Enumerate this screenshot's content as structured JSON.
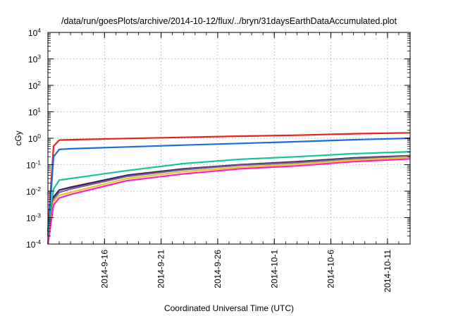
{
  "chart_data": {
    "type": "line",
    "title": "/data/run/goesPlots/archive/2014-10-12/flux/../bryn/31daysEarthDataAccumulated.plot",
    "xlabel": "Coordinated Universal Time (UTC)",
    "ylabel": "cGy",
    "y_scale": "log",
    "ylim": [
      0.0001,
      10000
    ],
    "xlim": [
      "2014-09-11",
      "2014-10-13"
    ],
    "grid": true,
    "legend": "none",
    "x_ticks": [
      "2014-9-16",
      "2014-9-21",
      "2014-9-26",
      "2014-10-1",
      "2014-10-6",
      "2014-10-11"
    ],
    "y_ticks": [
      {
        "value": 0.0001,
        "base": "10",
        "exp": "-4"
      },
      {
        "value": 0.001,
        "base": "10",
        "exp": "-3"
      },
      {
        "value": 0.01,
        "base": "10",
        "exp": "-2"
      },
      {
        "value": 0.1,
        "base": "10",
        "exp": "-1"
      },
      {
        "value": 1,
        "base": "10",
        "exp": "0"
      },
      {
        "value": 10,
        "base": "10",
        "exp": "1"
      },
      {
        "value": 100,
        "base": "10",
        "exp": "2"
      },
      {
        "value": 1000,
        "base": "10",
        "exp": "3"
      },
      {
        "value": 10000,
        "base": "10",
        "exp": "4"
      }
    ],
    "series": [
      {
        "color": "#e8221b",
        "x": [
          "2014-09-11",
          "2014-09-11 12:00",
          "2014-09-12",
          "2014-09-13",
          "2014-09-18",
          "2014-09-23",
          "2014-09-28",
          "2014-10-03",
          "2014-10-08",
          "2014-10-13"
        ],
        "values": [
          0.0003,
          0.5,
          0.85,
          0.88,
          0.98,
          1.08,
          1.2,
          1.3,
          1.48,
          1.6
        ]
      },
      {
        "color": "#1a6fe0",
        "x": [
          "2014-09-11",
          "2014-09-11 12:00",
          "2014-09-12",
          "2014-09-13",
          "2014-09-18",
          "2014-09-23",
          "2014-09-28",
          "2014-10-03",
          "2014-10-08",
          "2014-10-13"
        ],
        "values": [
          0.0002,
          0.2,
          0.38,
          0.4,
          0.47,
          0.55,
          0.64,
          0.74,
          0.88,
          1.0
        ]
      },
      {
        "color": "#19c29a",
        "x": [
          "2014-09-11",
          "2014-09-11 12:00",
          "2014-09-12",
          "2014-09-13",
          "2014-09-18",
          "2014-09-23",
          "2014-09-28",
          "2014-10-03",
          "2014-10-08",
          "2014-10-13"
        ],
        "values": [
          0.0002,
          0.012,
          0.026,
          0.03,
          0.06,
          0.11,
          0.16,
          0.2,
          0.26,
          0.31
        ]
      },
      {
        "color": "#3b1f52",
        "x": [
          "2014-09-11",
          "2014-09-11 12:00",
          "2014-09-12",
          "2014-09-13",
          "2014-09-18",
          "2014-09-23",
          "2014-09-28",
          "2014-10-03",
          "2014-10-08",
          "2014-10-13"
        ],
        "values": [
          0.0001,
          0.006,
          0.011,
          0.014,
          0.04,
          0.07,
          0.1,
          0.13,
          0.18,
          0.22
        ]
      },
      {
        "color": "#7a5f9e",
        "x": [
          "2014-09-11",
          "2014-09-11 12:00",
          "2014-09-12",
          "2014-09-13",
          "2014-09-18",
          "2014-09-23",
          "2014-09-28",
          "2014-10-03",
          "2014-10-08",
          "2014-10-13"
        ],
        "values": [
          0.0001,
          0.005,
          0.009,
          0.012,
          0.036,
          0.065,
          0.095,
          0.12,
          0.17,
          0.21
        ]
      },
      {
        "color": "#e5c81e",
        "x": [
          "2014-09-11",
          "2014-09-11 12:00",
          "2014-09-12",
          "2014-09-13",
          "2014-09-18",
          "2014-09-23",
          "2014-09-28",
          "2014-10-03",
          "2014-10-08",
          "2014-10-13"
        ],
        "values": [
          0.0001,
          0.004,
          0.007,
          0.009,
          0.03,
          0.055,
          0.08,
          0.105,
          0.15,
          0.19
        ]
      },
      {
        "color": "#ff1fc8",
        "x": [
          "2014-09-11",
          "2014-09-11 12:00",
          "2014-09-12",
          "2014-09-13",
          "2014-09-18",
          "2014-09-23",
          "2014-09-28",
          "2014-10-03",
          "2014-10-08",
          "2014-10-13"
        ],
        "values": [
          0.0001,
          0.003,
          0.0055,
          0.0075,
          0.025,
          0.045,
          0.07,
          0.09,
          0.13,
          0.165
        ]
      }
    ]
  }
}
